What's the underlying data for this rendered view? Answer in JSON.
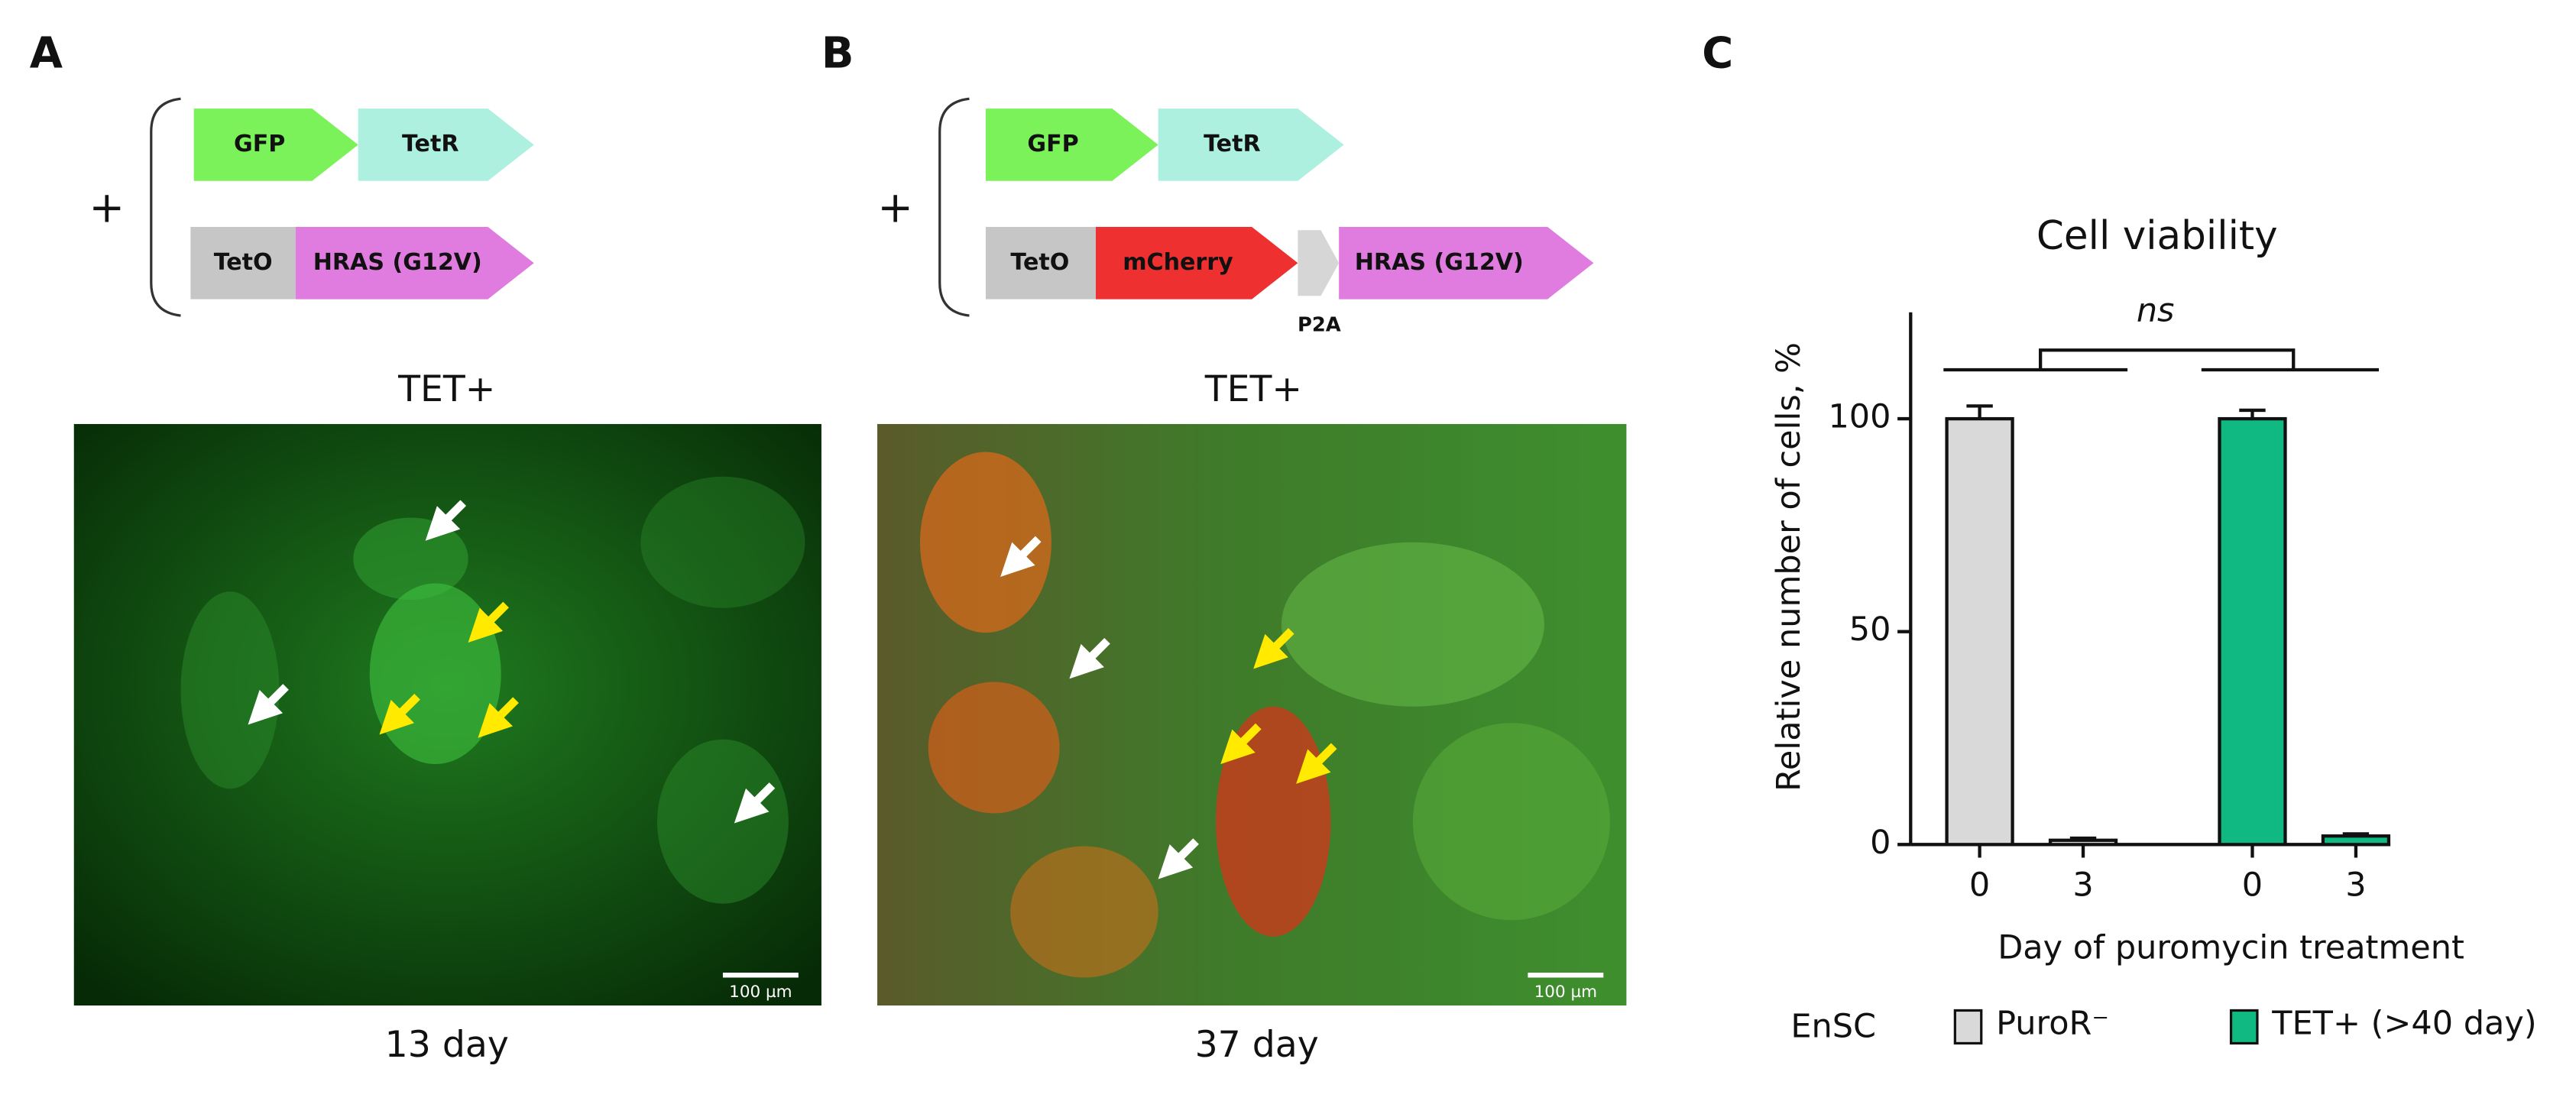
{
  "panel_a": {
    "label": "A",
    "plus": "+",
    "gfp": "GFP",
    "tetr": "TetR",
    "teto": "TetO",
    "hras": "HRAS (G12V)",
    "condition": "TET+",
    "scale_bar": "100 µm",
    "caption": "13 day"
  },
  "panel_b": {
    "label": "B",
    "plus": "+",
    "gfp": "GFP",
    "tetr": "TetR",
    "teto": "TetO",
    "mcherry": "mCherry",
    "p2a": "P2A",
    "hras": "HRAS (G12V)",
    "condition": "TET+",
    "scale_bar": "100 µm",
    "caption": "37 day"
  },
  "panel_c": {
    "label": "C"
  },
  "chart_data": {
    "type": "bar",
    "title": "Cell viability",
    "y_label": "Relative number of cells, %",
    "x_label": "Day of puromycin treatment",
    "categories": [
      "0",
      "3"
    ],
    "series": [
      {
        "name": "PuroR⁻",
        "color": "#d9d9d9",
        "values": [
          100,
          1
        ],
        "errors": [
          3,
          0.5
        ]
      },
      {
        "name": "TET+ (>40 day)",
        "color": "#10b981",
        "values": [
          100,
          2
        ],
        "errors": [
          2,
          0.5
        ]
      }
    ],
    "legend_title": "EnSC",
    "annotation": "ns",
    "ylim": [
      0,
      125
    ],
    "yticks": [
      0,
      50,
      100
    ]
  }
}
